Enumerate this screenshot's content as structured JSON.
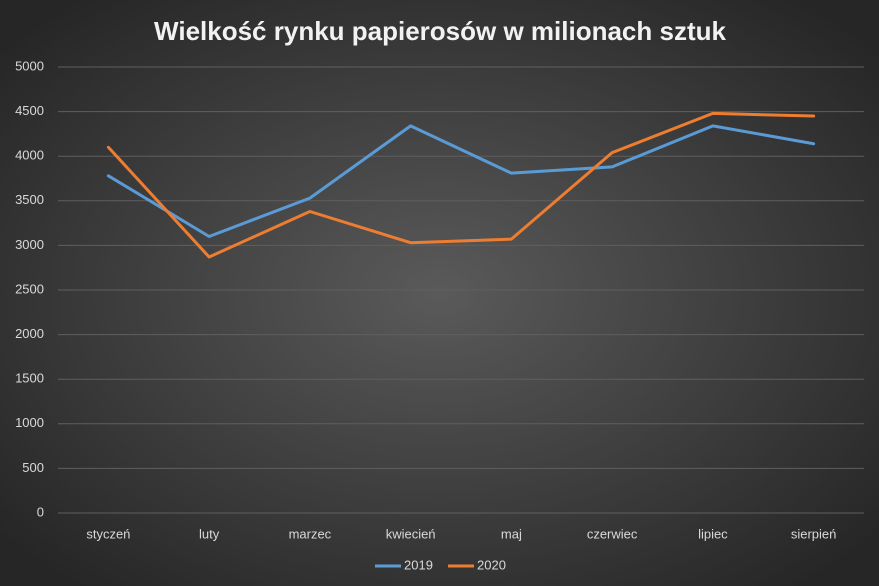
{
  "chart_data": {
    "type": "line",
    "title": "Wielkość rynku papierosów w milionach sztuk",
    "categories": [
      "styczeń",
      "luty",
      "marzec",
      "kwiecień",
      "maj",
      "czerwiec",
      "lipiec",
      "sierpień"
    ],
    "series": [
      {
        "name": "2019",
        "color": "#5b9bd5",
        "values": [
          3780,
          3100,
          3530,
          4340,
          3810,
          3880,
          4340,
          4140
        ]
      },
      {
        "name": "2020",
        "color": "#ed7d31",
        "values": [
          4100,
          2870,
          3380,
          3030,
          3070,
          4040,
          4480,
          4450
        ]
      }
    ],
    "ylim": [
      0,
      5000
    ],
    "yticks": [
      0,
      500,
      1000,
      1500,
      2000,
      2500,
      3000,
      3500,
      4000,
      4500,
      5000
    ],
    "grid": true,
    "legend": "bottom"
  }
}
